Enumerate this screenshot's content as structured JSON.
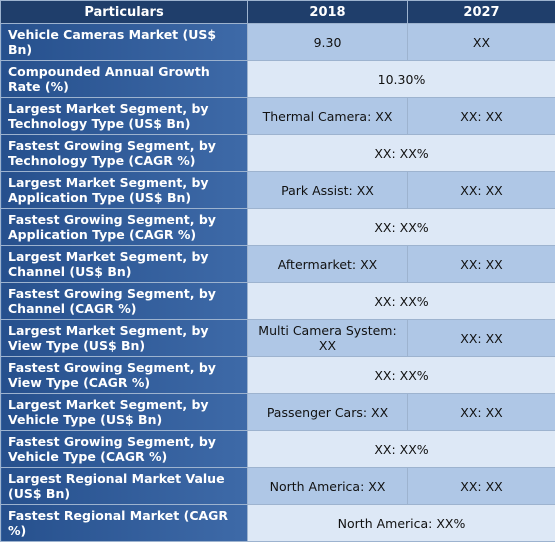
{
  "header": {
    "particulars": "Particulars",
    "y2018": "2018",
    "y2027": "2027"
  },
  "rows": [
    {
      "label": "Vehicle Cameras Market (US$ Bn)",
      "v2018": "9.30",
      "v2027": "XX"
    },
    {
      "label": "Compounded Annual Growth Rate (%)",
      "merged": "10.30%"
    },
    {
      "label": "Largest Market Segment, by Technology Type (US$ Bn)",
      "v2018": "Thermal Camera: XX",
      "v2027": "XX: XX"
    },
    {
      "label": "Fastest Growing Segment, by Technology Type (CAGR %)",
      "merged": "XX: XX%"
    },
    {
      "label": "Largest Market Segment, by Application Type (US$ Bn)",
      "v2018": "Park Assist: XX",
      "v2027": "XX: XX"
    },
    {
      "label": "Fastest Growing Segment, by Application Type (CAGR %)",
      "merged": "XX: XX%"
    },
    {
      "label": "Largest Market Segment, by Channel (US$ Bn)",
      "v2018": "Aftermarket: XX",
      "v2027": "XX: XX"
    },
    {
      "label": "Fastest Growing Segment, by Channel (CAGR %)",
      "merged": "XX: XX%"
    },
    {
      "label": "Largest Market Segment, by View Type (US$ Bn)",
      "v2018": "Multi Camera System: XX",
      "v2027": "XX: XX"
    },
    {
      "label": "Fastest Growing Segment, by View Type (CAGR %)",
      "merged": "XX: XX%"
    },
    {
      "label": "Largest Market Segment, by Vehicle Type (US$ Bn)",
      "v2018": "Passenger Cars: XX",
      "v2027": "XX: XX"
    },
    {
      "label": "Fastest Growing Segment, by Vehicle Type (CAGR %)",
      "merged": "XX: XX%"
    },
    {
      "label": "Largest Regional Market Value (US$ Bn)",
      "v2018": "North America: XX",
      "v2027": "XX: XX"
    },
    {
      "label": "Fastest Regional Market (CAGR %)",
      "merged": "North America: XX%"
    }
  ]
}
